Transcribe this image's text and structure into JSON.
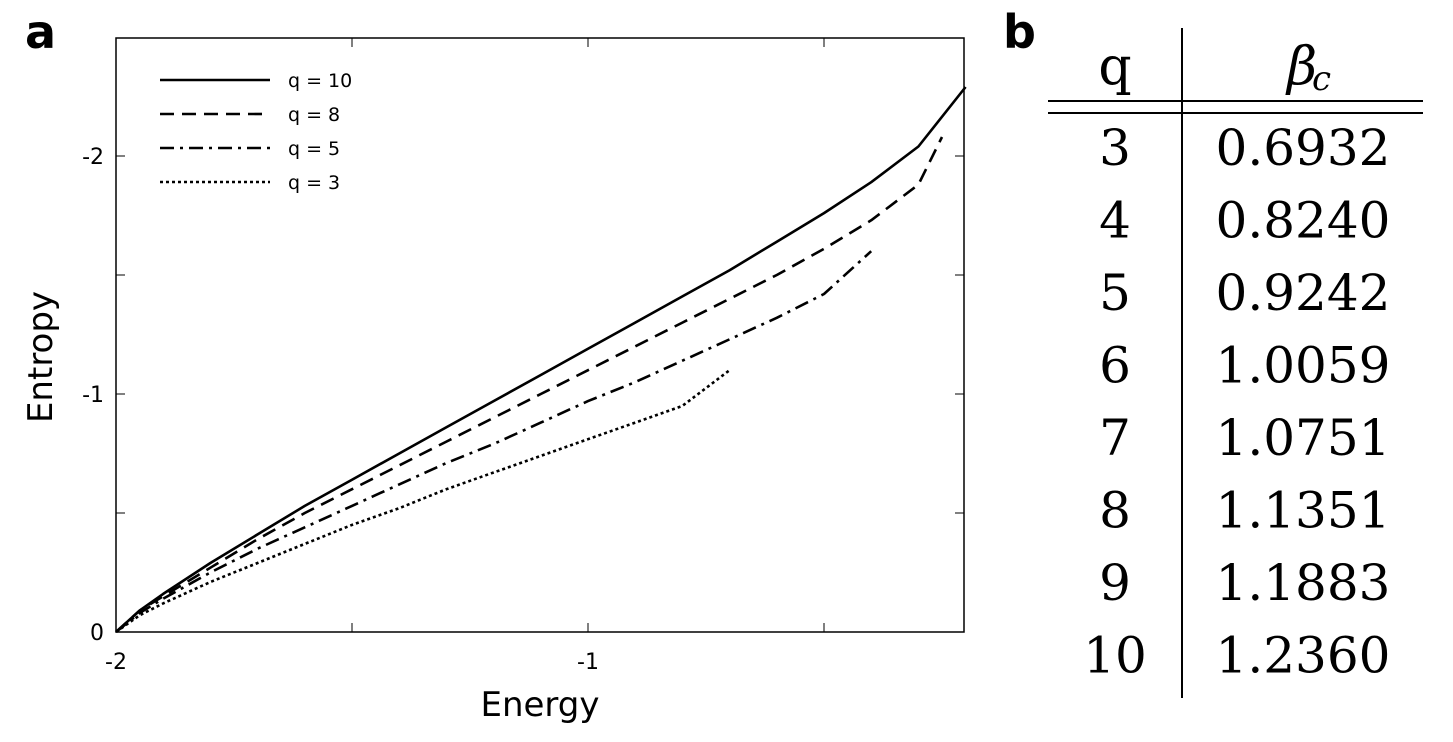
{
  "panel_a": {
    "label": "a"
  },
  "panel_b": {
    "label": "b",
    "header": {
      "col1": "q",
      "col2_symbol": "β",
      "col2_subscript": "c"
    },
    "rows": [
      {
        "q": "3",
        "beta_c": "0.6932"
      },
      {
        "q": "4",
        "beta_c": "0.8240"
      },
      {
        "q": "5",
        "beta_c": "0.9242"
      },
      {
        "q": "6",
        "beta_c": "1.0059"
      },
      {
        "q": "7",
        "beta_c": "1.0751"
      },
      {
        "q": "8",
        "beta_c": "1.1351"
      },
      {
        "q": "9",
        "beta_c": "1.1883"
      },
      {
        "q": "10",
        "beta_c": "1.2360"
      }
    ]
  },
  "chart_data": {
    "type": "line",
    "title": "",
    "xlabel": "Energy",
    "ylabel": "Entropy",
    "xlim": [
      -2.0,
      -0.2
    ],
    "ylim": [
      0.0,
      -2.5
    ],
    "xticks": [
      {
        "value": -2,
        "label": "-2"
      },
      {
        "value": -1,
        "label": "-1"
      }
    ],
    "xticks_minor": [
      -1.5,
      -0.5
    ],
    "yticks": [
      {
        "value": 0,
        "label": "0"
      },
      {
        "value": -1,
        "label": "-1"
      },
      {
        "value": -2,
        "label": "-2"
      }
    ],
    "yticks_minor": [
      -0.5,
      -1.5
    ],
    "legend_position": "top-left",
    "grid": false,
    "series": [
      {
        "name": "q = 10",
        "dash": "solid",
        "x": [
          -2.0,
          -1.95,
          -1.9,
          -1.8,
          -1.7,
          -1.6,
          -1.5,
          -1.4,
          -1.3,
          -1.2,
          -1.1,
          -1.0,
          -0.9,
          -0.8,
          -0.7,
          -0.6,
          -0.5,
          -0.4,
          -0.3,
          -0.2
        ],
        "y": [
          0.0,
          -0.09,
          -0.16,
          -0.29,
          -0.41,
          -0.53,
          -0.64,
          -0.75,
          -0.86,
          -0.97,
          -1.08,
          -1.19,
          -1.3,
          -1.41,
          -1.52,
          -1.64,
          -1.76,
          -1.89,
          -2.04,
          -2.29
        ]
      },
      {
        "name": "q = 8",
        "dash": "dashed",
        "x": [
          -2.0,
          -1.95,
          -1.9,
          -1.8,
          -1.7,
          -1.6,
          -1.5,
          -1.4,
          -1.3,
          -1.2,
          -1.1,
          -1.0,
          -0.9,
          -0.8,
          -0.7,
          -0.6,
          -0.5,
          -0.4,
          -0.3,
          -0.25
        ],
        "y": [
          0.0,
          -0.09,
          -0.15,
          -0.27,
          -0.39,
          -0.5,
          -0.6,
          -0.7,
          -0.8,
          -0.9,
          -1.0,
          -1.1,
          -1.2,
          -1.3,
          -1.4,
          -1.5,
          -1.61,
          -1.73,
          -1.88,
          -2.08
        ]
      },
      {
        "name": "q = 5",
        "dash": "dash-dot",
        "x": [
          -2.0,
          -1.95,
          -1.9,
          -1.8,
          -1.7,
          -1.6,
          -1.5,
          -1.4,
          -1.3,
          -1.2,
          -1.1,
          -1.0,
          -0.9,
          -0.8,
          -0.7,
          -0.6,
          -0.5,
          -0.4
        ],
        "y": [
          0.0,
          -0.08,
          -0.14,
          -0.25,
          -0.35,
          -0.44,
          -0.53,
          -0.62,
          -0.71,
          -0.79,
          -0.88,
          -0.97,
          -1.05,
          -1.14,
          -1.23,
          -1.32,
          -1.42,
          -1.6
        ]
      },
      {
        "name": "q = 3",
        "dash": "dotted",
        "x": [
          -2.0,
          -1.95,
          -1.9,
          -1.8,
          -1.7,
          -1.6,
          -1.5,
          -1.4,
          -1.3,
          -1.2,
          -1.1,
          -1.0,
          -0.9,
          -0.8,
          -0.7
        ],
        "y": [
          0.0,
          -0.07,
          -0.12,
          -0.21,
          -0.29,
          -0.37,
          -0.45,
          -0.52,
          -0.6,
          -0.67,
          -0.74,
          -0.81,
          -0.88,
          -0.95,
          -1.1
        ]
      }
    ]
  }
}
